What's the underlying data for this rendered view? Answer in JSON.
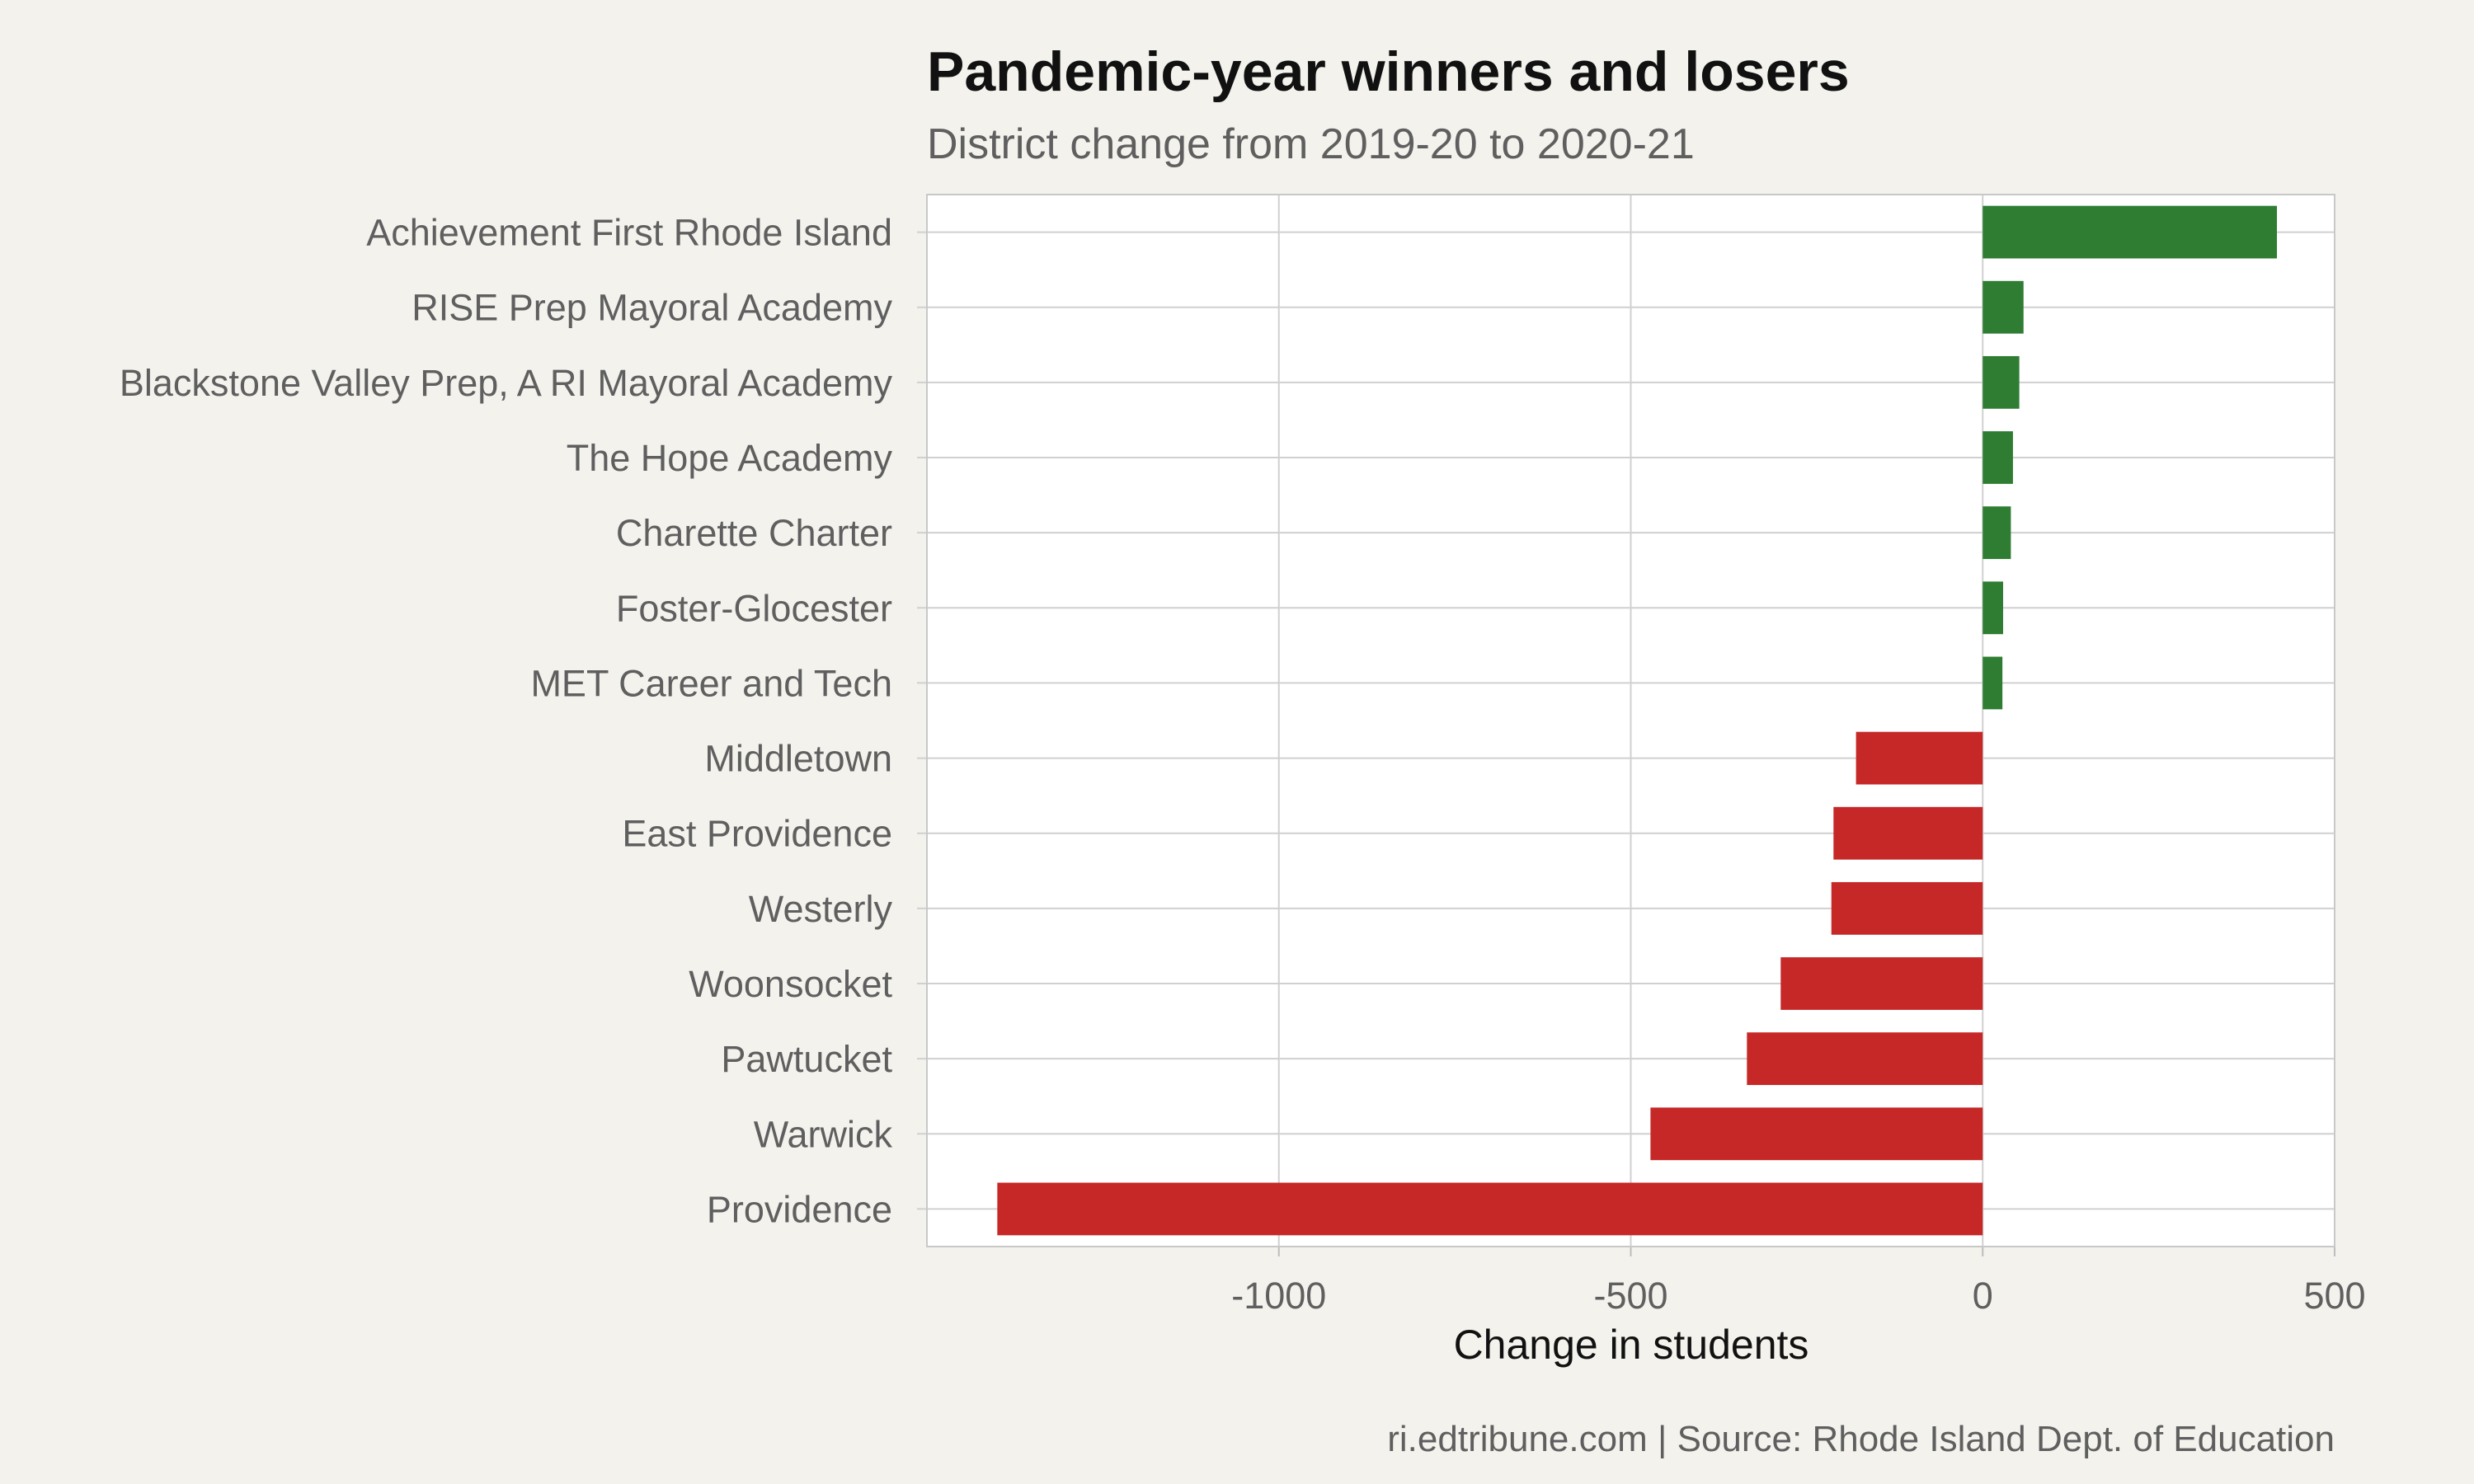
{
  "chart_data": {
    "type": "bar",
    "orientation": "horizontal",
    "title": "Pandemic-year winners and losers",
    "subtitle": "District change from 2019-20 to 2020-21",
    "xlabel": "Change in students",
    "ylabel": "",
    "caption": "ri.edtribune.com | Source: Rhode Island Dept. of Education",
    "xlim": [
      -1500,
      500
    ],
    "xticks": [
      -1000,
      -500,
      0,
      500
    ],
    "xtick_labels": [
      "-1000",
      "-500",
      "0",
      "500"
    ],
    "grid": true,
    "categories": [
      "Achievement First Rhode Island",
      "RISE Prep Mayoral Academy",
      "Blackstone Valley Prep, A RI Mayoral Academy",
      "The Hope Academy",
      "Charette Charter",
      "Foster-Glocester",
      "MET Career and Tech",
      "Middletown",
      "East Providence",
      "Westerly",
      "Woonsocket",
      "Pawtucket",
      "Warwick",
      "Providence"
    ],
    "values": [
      418,
      58,
      52,
      43,
      40,
      29,
      28,
      -180,
      -212,
      -215,
      -287,
      -335,
      -472,
      -1400
    ],
    "colors": {
      "positive": "#2e7d32",
      "negative": "#c62828"
    }
  }
}
